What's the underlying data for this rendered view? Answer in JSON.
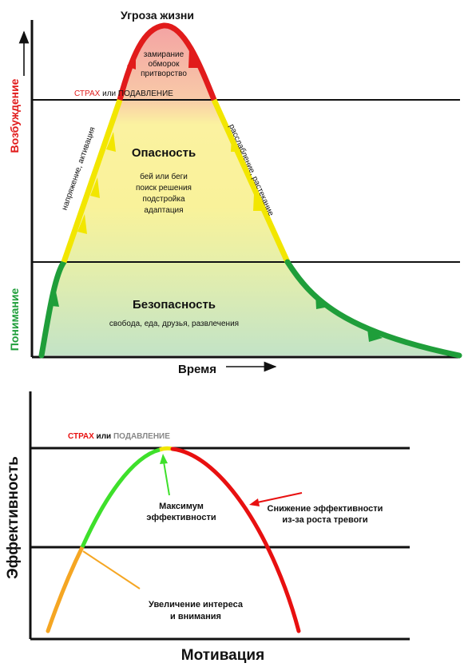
{
  "top": {
    "title_peak": "Угроза жизни",
    "zone_threat_lines": [
      "замирание",
      "обморок",
      "притворство"
    ],
    "fear_word": "СТРАХ",
    "fear_or": " или ",
    "fear_suppress": "ПОДАВЛЕНИЕ",
    "zone_danger_title": "Опасность",
    "zone_danger_lines": [
      "бей или беги",
      "поиск решения",
      "подстройка",
      "адаптация"
    ],
    "zone_safe_title": "Безопасность",
    "zone_safe_line": "свобода, еда, друзья, развлечения",
    "rising_label": "напряжение, активация",
    "falling_label": "расслабление, растекание",
    "y_axis_upper": "Возбуждение",
    "y_axis_lower": "Понимание",
    "x_axis": "Время",
    "colors": {
      "red": "#e11b1b",
      "yellow": "#f2e600",
      "green": "#1f9e3a"
    }
  },
  "bottom": {
    "fear_word": "СТРАХ",
    "fear_or": " или ",
    "fear_suppress": "ПОДАВЛЕНИЕ",
    "peak_label_lines": [
      "Максимум",
      "эффективности"
    ],
    "decline_label_lines": [
      "Снижение эффективности",
      "из-за роста тревоги"
    ],
    "interest_label_lines": [
      "Увеличение интереса",
      "и внимания"
    ],
    "y_axis": "Эффективность",
    "x_axis": "Мотивация",
    "colors": {
      "orange": "#f5a623",
      "green": "#3ee02b",
      "red": "#e81010"
    }
  }
}
